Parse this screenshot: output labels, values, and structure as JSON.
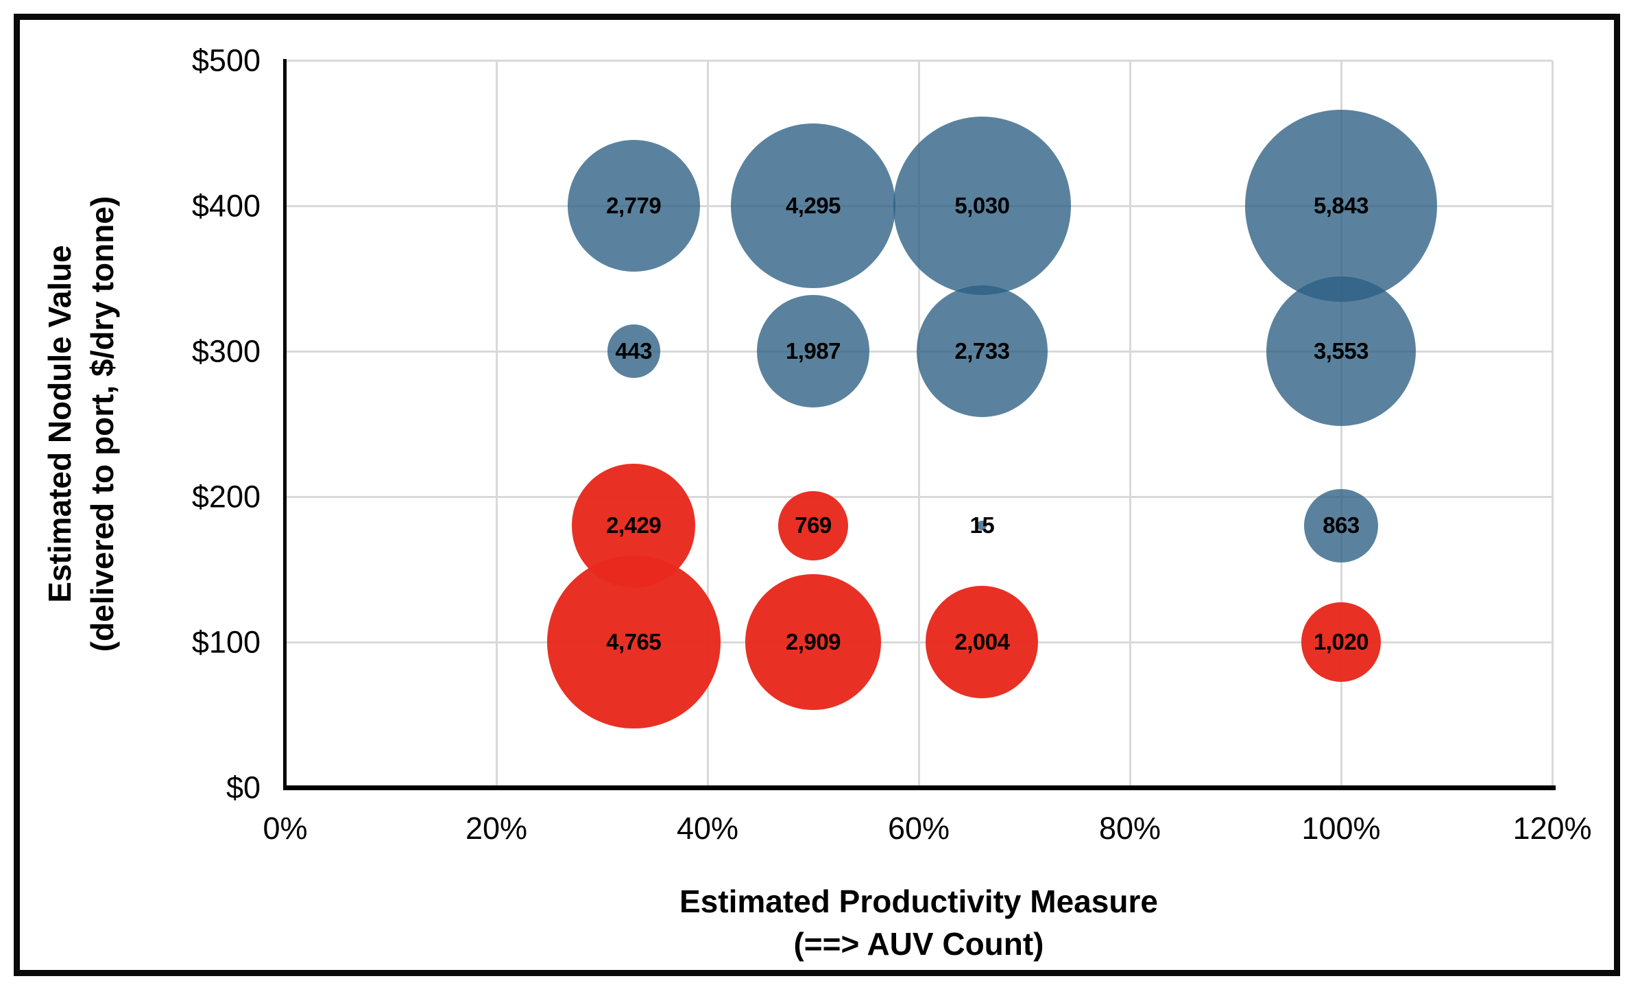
{
  "chart_data": {
    "type": "scatter",
    "subtype": "bubble",
    "xlabel_lines": [
      "Estimated Productivity Measure",
      "(==> AUV Count)"
    ],
    "ylabel_lines": [
      "Estimated Nodule Value",
      "(delivered to port, $/dry tonne)"
    ],
    "x_ticks": [
      "0%",
      "20%",
      "40%",
      "60%",
      "80%",
      "100%",
      "120%"
    ],
    "x_tick_values": [
      0,
      20,
      40,
      60,
      80,
      100,
      120
    ],
    "y_ticks": [
      "$0",
      "$100",
      "$200",
      "$300",
      "$400",
      "$500"
    ],
    "y_tick_values": [
      0,
      100,
      200,
      300,
      400,
      500
    ],
    "xlim": [
      0,
      120
    ],
    "ylim": [
      0,
      500
    ],
    "grid": true,
    "grid_color": "#d9d9d9",
    "axis_color": "#000000",
    "size_encoding": "bubble area proportional to value",
    "series": [
      {
        "name": "blue-bubbles",
        "color": "#2c5f83",
        "opacity": 0.78,
        "points": [
          {
            "x": 33,
            "y": 400,
            "value": 2779,
            "label": "2,779"
          },
          {
            "x": 50,
            "y": 400,
            "value": 4295,
            "label": "4,295"
          },
          {
            "x": 66,
            "y": 400,
            "value": 5030,
            "label": "5,030"
          },
          {
            "x": 100,
            "y": 400,
            "value": 5843,
            "label": "5,843"
          },
          {
            "x": 33,
            "y": 300,
            "value": 443,
            "label": "443"
          },
          {
            "x": 50,
            "y": 300,
            "value": 1987,
            "label": "1,987"
          },
          {
            "x": 66,
            "y": 300,
            "value": 2733,
            "label": "2,733"
          },
          {
            "x": 100,
            "y": 300,
            "value": 3553,
            "label": "3,553"
          },
          {
            "x": 66,
            "y": 180,
            "value": 15,
            "label": "15"
          },
          {
            "x": 100,
            "y": 180,
            "value": 863,
            "label": "863"
          }
        ]
      },
      {
        "name": "red-bubbles",
        "color": "#e8291d",
        "opacity": 0.97,
        "points": [
          {
            "x": 33,
            "y": 180,
            "value": 2429,
            "label": "2,429"
          },
          {
            "x": 50,
            "y": 180,
            "value": 769,
            "label": "769"
          },
          {
            "x": 33,
            "y": 100,
            "value": 4765,
            "label": "4,765"
          },
          {
            "x": 50,
            "y": 100,
            "value": 2909,
            "label": "2,909"
          },
          {
            "x": 66,
            "y": 100,
            "value": 2004,
            "label": "2,004"
          },
          {
            "x": 100,
            "y": 100,
            "value": 1020,
            "label": "1,020"
          }
        ]
      }
    ]
  }
}
